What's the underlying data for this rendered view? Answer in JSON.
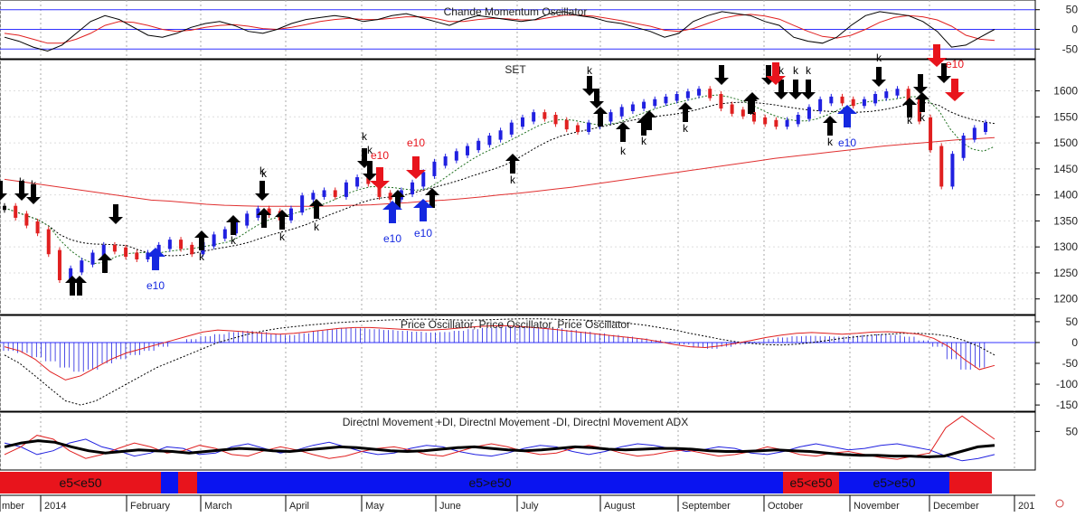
{
  "chart_data": [
    {
      "type": "line",
      "title": "Chande Momentum Oscillator",
      "yticks": [
        50,
        0,
        -50
      ],
      "ylim": [
        -70,
        70
      ],
      "reference_lines": [
        50,
        0,
        -50
      ],
      "colors": {
        "oscillator": "#000000",
        "signal": "#e02020",
        "reference": "#3030ff"
      },
      "oscillator_values": [
        -20,
        -30,
        -45,
        -55,
        -40,
        -10,
        20,
        35,
        25,
        5,
        -15,
        -20,
        -10,
        5,
        15,
        20,
        10,
        -5,
        -10,
        0,
        15,
        25,
        30,
        35,
        30,
        20,
        25,
        35,
        40,
        30,
        20,
        10,
        25,
        35,
        30,
        25,
        20,
        25,
        40,
        45,
        35,
        30,
        20,
        15,
        5,
        -5,
        -20,
        -10,
        20,
        35,
        45,
        40,
        35,
        20,
        10,
        -20,
        -30,
        -35,
        -20,
        10,
        35,
        45,
        40,
        35,
        20,
        -5,
        -45,
        -40,
        -20,
        0
      ],
      "signal_values": [
        -10,
        -15,
        -25,
        -35,
        -35,
        -25,
        -10,
        10,
        20,
        18,
        10,
        0,
        -5,
        -2,
        5,
        10,
        12,
        8,
        2,
        0,
        5,
        12,
        20,
        25,
        28,
        25,
        25,
        28,
        32,
        32,
        28,
        20,
        20,
        25,
        28,
        27,
        24,
        24,
        30,
        36,
        36,
        34,
        28,
        22,
        15,
        8,
        -2,
        -5,
        2,
        15,
        28,
        35,
        38,
        34,
        26,
        10,
        -5,
        -18,
        -22,
        -15,
        0,
        18,
        30,
        35,
        32,
        24,
        8,
        -15,
        -25,
        -28
      ]
    },
    {
      "type": "line",
      "title": "SET",
      "yticks": [
        1600,
        1550,
        1500,
        1450,
        1400,
        1350,
        1300,
        1250,
        1200
      ],
      "ylim": [
        1170,
        1660
      ],
      "x_months": [
        "mber",
        "2014",
        "February",
        "March",
        "April",
        "May",
        "June",
        "July",
        "August",
        "September",
        "October",
        "November",
        "December",
        "201"
      ],
      "colors": {
        "up": "#2020e0",
        "down": "#e02020",
        "neutral": "#000000",
        "ma_long": "#e03030",
        "ma_mid": "#000000",
        "ma_short": "#207020"
      },
      "close_values": [
        1375,
        1360,
        1345,
        1330,
        1290,
        1240,
        1255,
        1270,
        1285,
        1300,
        1295,
        1285,
        1280,
        1285,
        1300,
        1310,
        1300,
        1290,
        1305,
        1320,
        1330,
        1345,
        1360,
        1370,
        1365,
        1355,
        1370,
        1395,
        1400,
        1405,
        1400,
        1420,
        1430,
        1425,
        1400,
        1395,
        1405,
        1420,
        1440,
        1460,
        1470,
        1480,
        1490,
        1500,
        1510,
        1520,
        1535,
        1545,
        1555,
        1550,
        1540,
        1530,
        1525,
        1535,
        1545,
        1555,
        1565,
        1570,
        1575,
        1580,
        1585,
        1590,
        1595,
        1600,
        1590,
        1570,
        1560,
        1555,
        1545,
        1540,
        1535,
        1540,
        1550,
        1565,
        1580,
        1585,
        1580,
        1575,
        1580,
        1590,
        1595,
        1600,
        1580,
        1545,
        1490,
        1420,
        1475,
        1510,
        1525,
        1535
      ],
      "ma_long_values": [
        1430,
        1425,
        1420,
        1415,
        1410,
        1405,
        1400,
        1395,
        1390,
        1388,
        1385,
        1382,
        1380,
        1379,
        1378,
        1378,
        1378,
        1378,
        1379,
        1380,
        1381,
        1383,
        1385,
        1388,
        1390,
        1393,
        1396,
        1400,
        1403,
        1407,
        1411,
        1415,
        1420,
        1425,
        1430,
        1435,
        1440,
        1445,
        1450,
        1455,
        1460,
        1465,
        1470,
        1474,
        1478,
        1482,
        1486,
        1490,
        1494,
        1497,
        1500,
        1503,
        1506,
        1508,
        1510
      ],
      "arrows": [
        {
          "label": "k",
          "dir": "down",
          "color": "black"
        },
        {
          "label": "k",
          "dir": "up",
          "color": "black"
        },
        {
          "label": "e10",
          "dir": "up",
          "color": "blue"
        },
        {
          "label": "e10",
          "dir": "down",
          "color": "red"
        }
      ],
      "annotations": {
        "k": "k",
        "e10": "e10"
      }
    },
    {
      "type": "bar",
      "title": "Price Oscillator, Price Oscillator, Price Oscillator",
      "yticks": [
        50,
        0,
        -50,
        -100,
        -150
      ],
      "ylim": [
        -165,
        65
      ],
      "colors": {
        "bars": "#2020e0",
        "fast": "#e02020",
        "slow": "#000000",
        "zero": "#3030ff"
      },
      "histogram_values": [
        -20,
        -25,
        -35,
        -45,
        -60,
        -70,
        -65,
        -50,
        -40,
        -30,
        -20,
        -10,
        0,
        8,
        15,
        20,
        25,
        28,
        25,
        20,
        18,
        22,
        28,
        32,
        35,
        34,
        32,
        30,
        28,
        26,
        24,
        25,
        28,
        32,
        35,
        38,
        40,
        38,
        36,
        34,
        30,
        26,
        22,
        18,
        14,
        10,
        6,
        2,
        -5,
        -12,
        -15,
        -10,
        -5,
        2,
        8,
        12,
        15,
        16,
        15,
        14,
        16,
        18,
        20,
        18,
        14,
        5,
        -10,
        -40,
        -65,
        -60
      ],
      "fast_values": [
        -10,
        -20,
        -40,
        -70,
        -90,
        -80,
        -60,
        -40,
        -25,
        -15,
        -5,
        5,
        15,
        25,
        30,
        28,
        25,
        22,
        20,
        22,
        26,
        30,
        34,
        36,
        36,
        34,
        32,
        30,
        30,
        32,
        35,
        38,
        40,
        40,
        38,
        35,
        32,
        28,
        24,
        20,
        16,
        12,
        8,
        2,
        -5,
        -10,
        -12,
        -8,
        -2,
        5,
        12,
        18,
        22,
        24,
        22,
        20,
        22,
        25,
        26,
        24,
        20,
        10,
        -10,
        -40,
        -65,
        -55
      ],
      "slow_values": [
        -30,
        -50,
        -80,
        -110,
        -140,
        -150,
        -140,
        -120,
        -100,
        -80,
        -60,
        -45,
        -30,
        -15,
        0,
        10,
        20,
        28,
        34,
        38,
        42,
        45,
        48,
        50,
        52,
        54,
        55,
        56,
        56,
        55,
        54,
        54,
        55,
        56,
        57,
        57,
        56,
        55,
        54,
        52,
        50,
        46,
        42,
        36,
        30,
        22,
        15,
        8,
        2,
        -2,
        -5,
        -6,
        -4,
        0,
        5,
        10,
        14,
        18,
        20,
        22,
        22,
        20,
        15,
        5,
        -10,
        -30
      ]
    },
    {
      "type": "line",
      "title": "Directnl Movement +DI, Directnl Movement -DI, Directnl Movement ADX",
      "yticks": [
        50
      ],
      "ylim": [
        0,
        75
      ],
      "colors": {
        "plus_di": "#e02020",
        "minus_di": "#2020e0",
        "adx": "#000000"
      },
      "plus_di_values": [
        20,
        30,
        45,
        40,
        25,
        15,
        20,
        28,
        35,
        30,
        22,
        25,
        32,
        28,
        20,
        18,
        25,
        30,
        26,
        20,
        15,
        18,
        24,
        28,
        30,
        26,
        20,
        18,
        24,
        30,
        34,
        30,
        24,
        20,
        22,
        28,
        32,
        28,
        22,
        18,
        20,
        24,
        26,
        22,
        18,
        20,
        24,
        30,
        26,
        20,
        18,
        22,
        24,
        20,
        16,
        14,
        18,
        22,
        55,
        70,
        55,
        40
      ],
      "minus_di_values": [
        35,
        30,
        20,
        25,
        35,
        40,
        30,
        25,
        18,
        22,
        30,
        28,
        20,
        22,
        30,
        34,
        28,
        22,
        26,
        32,
        36,
        30,
        24,
        20,
        22,
        28,
        32,
        30,
        24,
        20,
        18,
        22,
        28,
        32,
        30,
        24,
        20,
        24,
        30,
        34,
        32,
        28,
        24,
        26,
        30,
        28,
        22,
        20,
        24,
        30,
        34,
        30,
        26,
        28,
        32,
        34,
        30,
        26,
        18,
        12,
        15,
        20
      ],
      "adx_values": [
        30,
        35,
        38,
        36,
        30,
        25,
        22,
        24,
        26,
        25,
        24,
        22,
        24,
        26,
        28,
        27,
        25,
        24,
        26,
        28,
        30,
        29,
        27,
        25,
        24,
        25,
        27,
        29,
        30,
        28,
        26,
        25,
        26,
        28,
        30,
        29,
        27,
        26,
        27,
        28,
        28,
        27,
        25,
        24,
        24,
        25,
        26,
        25,
        24,
        22,
        20,
        19,
        19,
        18,
        18,
        17,
        18,
        24,
        30,
        32
      ]
    }
  ],
  "trend_band": {
    "segments": [
      {
        "label": "e5<e50",
        "color": "#e8141c",
        "span": [
          0,
          178
        ]
      },
      {
        "label": "",
        "color": "#0a14f0",
        "span": [
          178,
          197
        ]
      },
      {
        "label": "",
        "color": "#e8141c",
        "span": [
          197,
          218
        ]
      },
      {
        "label": "e5>e50",
        "color": "#0a14f0",
        "span": [
          218,
          866
        ]
      },
      {
        "label": "e5<e50",
        "color": "#e8141c",
        "span": [
          866,
          928
        ]
      },
      {
        "label": "e5>e50",
        "color": "#0a14f0",
        "span": [
          928,
          1050
        ]
      },
      {
        "label": "",
        "color": "#e8141c",
        "span": [
          1050,
          1097
        ]
      }
    ]
  }
}
